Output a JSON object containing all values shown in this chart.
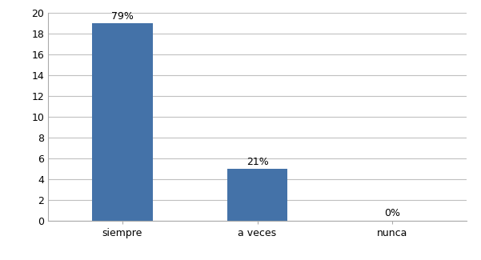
{
  "categories": [
    "siempre",
    "a veces",
    "nunca"
  ],
  "values": [
    19,
    5,
    0
  ],
  "labels": [
    "79%",
    "21%",
    "0%"
  ],
  "bar_color": "#4472a8",
  "ylim": [
    0,
    20
  ],
  "yticks": [
    0,
    2,
    4,
    6,
    8,
    10,
    12,
    14,
    16,
    18,
    20
  ],
  "background_color": "#ffffff",
  "grid_color": "#c0c0c0",
  "label_fontsize": 9,
  "tick_fontsize": 9,
  "bar_width": 0.45
}
